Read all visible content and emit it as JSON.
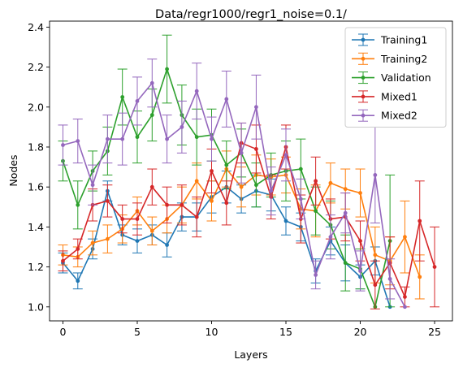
{
  "chart_data": {
    "type": "line",
    "title": "Data/regr1000/regr1_noise=0.1/",
    "xlabel": "Layers",
    "ylabel": "Nodes",
    "xlim": [
      -0.9,
      26.2
    ],
    "ylim": [
      0.93,
      2.43
    ],
    "xticks": [
      0,
      5,
      10,
      15,
      20,
      25
    ],
    "yticks": [
      1.0,
      1.2,
      1.4,
      1.6,
      1.8,
      2.0,
      2.2,
      2.4
    ],
    "xtick_labels": [
      "0",
      "5",
      "10",
      "15",
      "20",
      "25"
    ],
    "ytick_labels": [
      "1.0",
      "1.2",
      "1.4",
      "1.6",
      "1.8",
      "2.0",
      "2.2",
      "2.4"
    ],
    "grid": false,
    "legend_position": "top-right",
    "series": [
      {
        "name": "Training1",
        "color": "#1f77b4",
        "x": [
          0,
          1,
          2,
          3,
          4,
          5,
          6,
          7,
          8,
          9,
          10,
          11,
          12,
          13,
          14,
          15,
          16,
          17,
          18,
          19,
          20,
          21,
          22
        ],
        "y": [
          1.22,
          1.13,
          1.29,
          1.58,
          1.36,
          1.33,
          1.36,
          1.31,
          1.45,
          1.45,
          1.55,
          1.6,
          1.54,
          1.58,
          1.56,
          1.43,
          1.4,
          1.18,
          1.33,
          1.22,
          1.15,
          1.23,
          1.0
        ],
        "err": [
          0.05,
          0.04,
          0.05,
          0.05,
          0.05,
          0.06,
          0.05,
          0.06,
          0.07,
          0.07,
          0.08,
          0.08,
          0.07,
          0.08,
          0.08,
          0.07,
          0.07,
          0.06,
          0.07,
          0.09,
          0.06,
          0.07,
          0.0
        ]
      },
      {
        "name": "Training2",
        "color": "#ff7f0e",
        "x": [
          0,
          1,
          2,
          3,
          4,
          5,
          6,
          7,
          8,
          9,
          10,
          11,
          12,
          13,
          14,
          15,
          16,
          17,
          18,
          19,
          20,
          21,
          22,
          23,
          24
        ],
        "y": [
          1.26,
          1.25,
          1.32,
          1.34,
          1.39,
          1.48,
          1.38,
          1.44,
          1.51,
          1.63,
          1.53,
          1.69,
          1.6,
          1.66,
          1.65,
          1.66,
          1.49,
          1.48,
          1.62,
          1.59,
          1.57,
          1.26,
          1.23,
          1.35,
          1.15
        ],
        "err": [
          0.05,
          0.05,
          0.06,
          0.07,
          0.07,
          0.07,
          0.07,
          0.07,
          0.09,
          0.09,
          0.1,
          0.09,
          0.1,
          0.1,
          0.09,
          0.09,
          0.1,
          0.13,
          0.1,
          0.1,
          0.12,
          0.14,
          0.12,
          0.18,
          0.11
        ]
      },
      {
        "name": "Validation",
        "color": "#2ca02c",
        "x": [
          0,
          1,
          2,
          3,
          4,
          5,
          6,
          7,
          8,
          9,
          10,
          11,
          12,
          13,
          14,
          15,
          16,
          17,
          18,
          19,
          20,
          21,
          22
        ],
        "y": [
          1.73,
          1.51,
          1.68,
          1.78,
          2.05,
          1.85,
          1.96,
          2.19,
          1.96,
          1.85,
          1.86,
          1.71,
          1.77,
          1.61,
          1.66,
          1.68,
          1.69,
          1.48,
          1.41,
          1.22,
          1.19,
          1.0,
          1.33
        ],
        "err": [
          0.1,
          0.12,
          0.1,
          0.12,
          0.14,
          0.13,
          0.13,
          0.17,
          0.15,
          0.14,
          0.13,
          0.12,
          0.12,
          0.11,
          0.11,
          0.15,
          0.15,
          0.12,
          0.12,
          0.14,
          0.1,
          0.0,
          0.33
        ]
      },
      {
        "name": "Mixed1",
        "color": "#d62728",
        "x": [
          0,
          1,
          2,
          3,
          4,
          5,
          6,
          7,
          8,
          9,
          10,
          11,
          12,
          13,
          14,
          15,
          16,
          17,
          18,
          19,
          20,
          21,
          22,
          23,
          24,
          25
        ],
        "y": [
          1.23,
          1.29,
          1.51,
          1.53,
          1.44,
          1.44,
          1.6,
          1.51,
          1.51,
          1.45,
          1.68,
          1.52,
          1.82,
          1.79,
          1.55,
          1.8,
          1.44,
          1.63,
          1.44,
          1.45,
          1.33,
          1.11,
          1.22,
          1.05,
          1.43,
          1.2
        ],
        "err": [
          0.05,
          0.05,
          0.08,
          0.08,
          0.07,
          0.08,
          0.09,
          0.09,
          0.1,
          0.1,
          0.11,
          0.11,
          0.1,
          0.12,
          0.11,
          0.11,
          0.12,
          0.12,
          0.1,
          0.12,
          0.1,
          0.12,
          0.13,
          0.05,
          0.2,
          0.2
        ]
      },
      {
        "name": "Mixed2",
        "color": "#9467bd",
        "x": [
          0,
          1,
          2,
          3,
          4,
          5,
          6,
          7,
          8,
          9,
          10,
          11,
          12,
          13,
          14,
          15,
          16,
          17,
          18,
          19,
          20,
          21,
          22,
          23
        ],
        "y": [
          1.81,
          1.83,
          1.61,
          1.84,
          1.84,
          2.03,
          2.12,
          1.84,
          1.9,
          2.08,
          1.84,
          2.04,
          1.77,
          2.0,
          1.58,
          1.76,
          1.54,
          1.16,
          1.35,
          1.47,
          1.18,
          1.66,
          1.14,
          1.0
        ],
        "err": [
          0.1,
          0.11,
          0.1,
          0.12,
          0.13,
          0.12,
          0.12,
          0.12,
          0.13,
          0.14,
          0.11,
          0.14,
          0.15,
          0.16,
          0.12,
          0.13,
          0.1,
          0.07,
          0.11,
          0.1,
          0.1,
          0.24,
          0.1,
          0.0
        ]
      }
    ]
  }
}
